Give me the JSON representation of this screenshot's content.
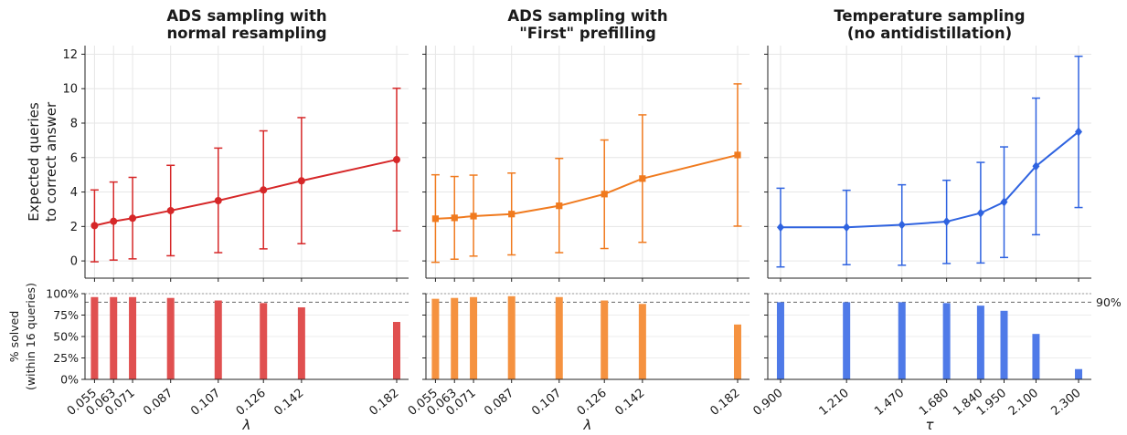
{
  "chart_data": [
    {
      "type": "line",
      "title": [
        "ADS sampling with",
        "normal resampling"
      ],
      "xlabel": "λ",
      "ylabel": [
        "Expected queries",
        "to correct answer"
      ],
      "ylim": [
        -1,
        12.5
      ],
      "yticks": [
        0,
        2,
        4,
        6,
        8,
        10,
        12
      ],
      "xlim": [
        0.051,
        0.187
      ],
      "x": [
        0.055,
        0.063,
        0.071,
        0.087,
        0.107,
        0.126,
        0.142,
        0.182
      ],
      "x_labels": [
        "0.055",
        "0.063",
        "0.071",
        "0.087",
        "0.107",
        "0.126",
        "0.142",
        "0.182"
      ],
      "marker": "circle",
      "color": "#d62728",
      "bar_color": "#e05050",
      "mean": [
        2.05,
        2.3,
        2.48,
        2.92,
        3.5,
        4.12,
        4.65,
        5.88
      ],
      "err_low": [
        -0.05,
        0.05,
        0.12,
        0.3,
        0.48,
        0.7,
        1.0,
        1.75
      ],
      "err_high": [
        4.12,
        4.58,
        4.85,
        5.55,
        6.55,
        7.55,
        8.32,
        10.02
      ],
      "solved_pct": [
        96,
        96,
        96,
        95,
        92,
        89,
        84,
        67
      ]
    },
    {
      "type": "line",
      "title": [
        "ADS sampling with",
        "\"First\" prefilling"
      ],
      "xlabel": "λ",
      "ylim": [
        -1,
        12.5
      ],
      "xlim": [
        0.051,
        0.187
      ],
      "x": [
        0.055,
        0.063,
        0.071,
        0.087,
        0.107,
        0.126,
        0.142,
        0.182
      ],
      "x_labels": [
        "0.055",
        "0.063",
        "0.071",
        "0.087",
        "0.107",
        "0.126",
        "0.142",
        "0.182"
      ],
      "marker": "square",
      "color": "#f07a1e",
      "bar_color": "#f59240",
      "mean": [
        2.45,
        2.5,
        2.6,
        2.72,
        3.2,
        3.88,
        4.78,
        6.15
      ],
      "err_low": [
        -0.08,
        0.1,
        0.28,
        0.35,
        0.48,
        0.72,
        1.08,
        2.02
      ],
      "err_high": [
        5.0,
        4.9,
        4.98,
        5.1,
        5.95,
        7.02,
        8.48,
        10.28
      ],
      "solved_pct": [
        94,
        95,
        96,
        97,
        96,
        92,
        88,
        64
      ]
    },
    {
      "type": "line",
      "title": [
        "Temperature sampling",
        "(no antidistillation)"
      ],
      "xlabel": "τ",
      "ylim": [
        -1,
        12.5
      ],
      "xlim": [
        0.84,
        2.36
      ],
      "x": [
        0.9,
        1.21,
        1.47,
        1.68,
        1.84,
        1.95,
        2.1,
        2.3
      ],
      "x_labels": [
        "0.900",
        "1.210",
        "1.470",
        "1.680",
        "1.840",
        "1.950",
        "2.100",
        "2.300"
      ],
      "marker": "diamond",
      "color": "#2f63e0",
      "bar_color": "#4f7ae8",
      "mean": [
        1.95,
        1.95,
        2.1,
        2.28,
        2.78,
        3.42,
        5.5,
        7.5
      ],
      "err_low": [
        -0.35,
        -0.22,
        -0.25,
        -0.15,
        -0.12,
        0.2,
        1.52,
        3.1
      ],
      "err_high": [
        4.22,
        4.1,
        4.42,
        4.68,
        5.72,
        6.62,
        9.45,
        11.88
      ],
      "solved_pct": [
        90,
        90,
        90,
        89,
        86,
        80,
        53,
        12
      ]
    }
  ],
  "bottom_axis": {
    "ylabel": [
      "% solved",
      "(within 16 queries)"
    ],
    "yticks": [
      "0%",
      "25%",
      "50%",
      "75%",
      "100%"
    ],
    "ylim": [
      0,
      100
    ],
    "reference_lines": [
      100,
      90
    ],
    "reference_label": "90%"
  }
}
